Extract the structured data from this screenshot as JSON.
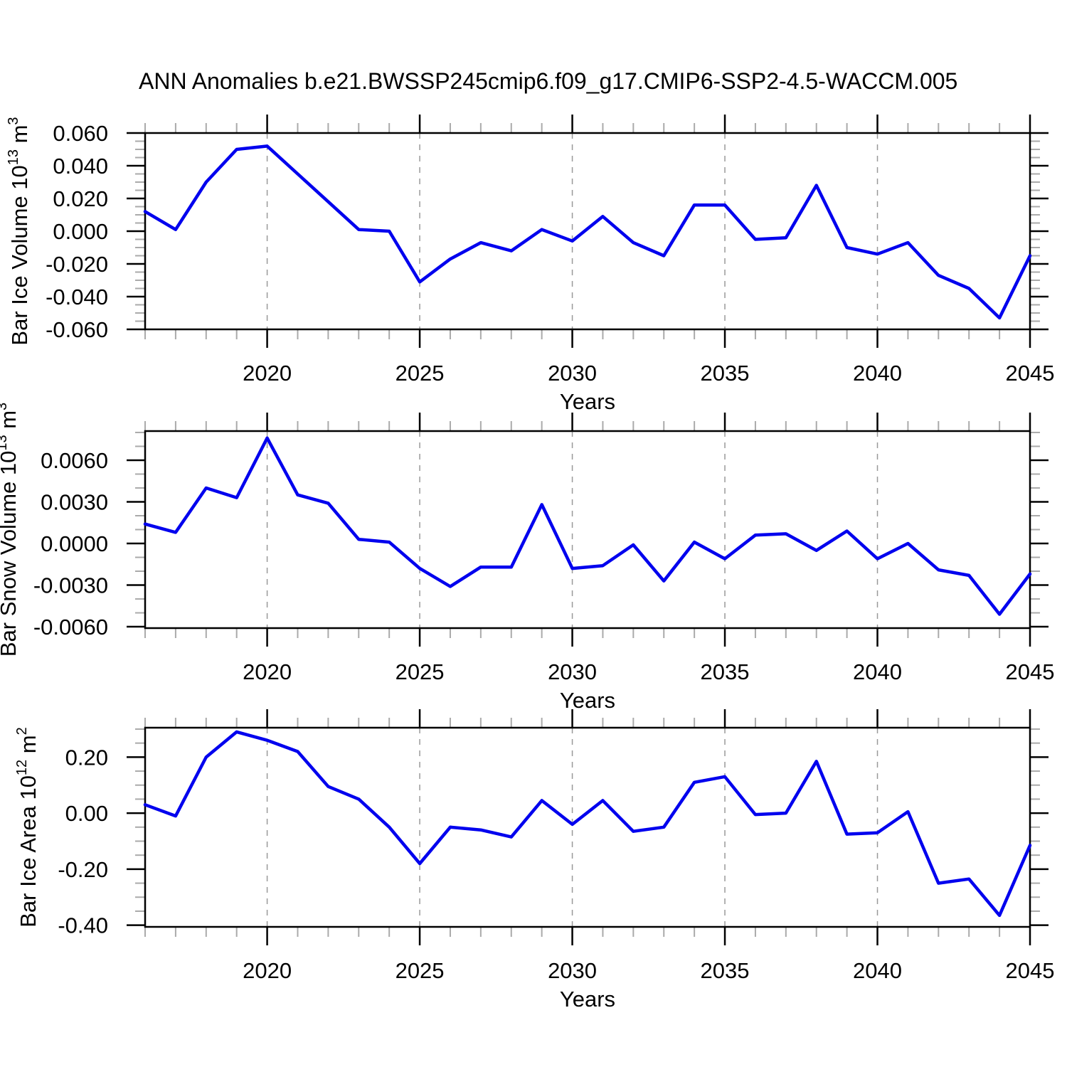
{
  "title": "ANN Anomalies b.e21.BWSSP245cmip6.f09_g17.CMIP6-SSP2-4.5-WACCM.005",
  "colors": {
    "line": "#0000ee",
    "axis": "#000000",
    "minor_tick": "#aaaaaa",
    "grid": "#999999",
    "background": "#ffffff"
  },
  "x_axis": {
    "label": "Years",
    "start": 2016,
    "end": 2045,
    "major_ticks": [
      2020,
      2025,
      2030,
      2035,
      2040,
      2045
    ],
    "major_tick_labels": [
      "2020",
      "2025",
      "2030",
      "2035",
      "2040",
      "2045"
    ],
    "minor_step": 1,
    "grid_years": [
      2020,
      2025,
      2030,
      2035,
      2040
    ]
  },
  "chart_data": [
    {
      "type": "line",
      "name": "bar-ice-volume",
      "ylabel": {
        "prefix": "Bar Ice Volume 10",
        "exp": "13",
        "unit": " m",
        "unit_exp": "3"
      },
      "xlabel": "Years",
      "ylim": [
        -0.06,
        0.06
      ],
      "minor_step": 0.005,
      "yticks": [
        {
          "v": 0.06,
          "label": "0.060"
        },
        {
          "v": 0.04,
          "label": "0.040"
        },
        {
          "v": 0.02,
          "label": "0.020"
        },
        {
          "v": 0.0,
          "label": "0.000"
        },
        {
          "v": -0.02,
          "label": "-0.020"
        },
        {
          "v": -0.04,
          "label": "-0.040"
        },
        {
          "v": -0.06,
          "label": "-0.060"
        }
      ],
      "x": [
        2016,
        2017,
        2018,
        2019,
        2020,
        2021,
        2022,
        2023,
        2024,
        2025,
        2026,
        2027,
        2028,
        2029,
        2030,
        2031,
        2032,
        2033,
        2034,
        2035,
        2036,
        2037,
        2038,
        2039,
        2040,
        2041,
        2042,
        2043,
        2044,
        2045
      ],
      "values": [
        0.012,
        0.001,
        0.03,
        0.05,
        0.052,
        0.035,
        0.018,
        0.001,
        0.0,
        -0.031,
        -0.017,
        -0.007,
        -0.012,
        0.001,
        -0.006,
        0.009,
        -0.007,
        -0.015,
        0.016,
        0.016,
        -0.005,
        -0.004,
        0.028,
        -0.01,
        -0.014,
        -0.007,
        -0.027,
        -0.035,
        -0.053,
        -0.015
      ]
    },
    {
      "type": "line",
      "name": "bar-snow-volume",
      "ylabel": {
        "prefix": "Bar Snow Volume 10",
        "exp": "13",
        "unit": " m",
        "unit_exp": "3"
      },
      "xlabel": "Years",
      "ylim": [
        -0.0061,
        0.0081
      ],
      "minor_step": 0.001,
      "yticks": [
        {
          "v": 0.006,
          "label": "0.0060"
        },
        {
          "v": 0.003,
          "label": "0.0030"
        },
        {
          "v": 0.0,
          "label": "0.0000"
        },
        {
          "v": -0.003,
          "label": "-0.0030"
        },
        {
          "v": -0.006,
          "label": "-0.0060"
        }
      ],
      "x": [
        2016,
        2017,
        2018,
        2019,
        2020,
        2021,
        2022,
        2023,
        2024,
        2025,
        2026,
        2027,
        2028,
        2029,
        2030,
        2031,
        2032,
        2033,
        2034,
        2035,
        2036,
        2037,
        2038,
        2039,
        2040,
        2041,
        2042,
        2043,
        2044,
        2045
      ],
      "values": [
        0.0014,
        0.0008,
        0.004,
        0.0033,
        0.0076,
        0.0035,
        0.0029,
        0.0003,
        0.0001,
        -0.0018,
        -0.0031,
        -0.0017,
        -0.0017,
        0.0028,
        -0.0018,
        -0.0016,
        -0.0001,
        -0.0027,
        0.0001,
        -0.0011,
        0.0006,
        0.0007,
        -0.0005,
        0.0009,
        -0.0011,
        0.0,
        -0.0019,
        -0.0023,
        -0.0051,
        -0.0022
      ]
    },
    {
      "type": "line",
      "name": "bar-ice-area",
      "ylabel": {
        "prefix": "Bar Ice Area 10",
        "exp": "12",
        "unit": " m",
        "unit_exp": "2"
      },
      "xlabel": "Years",
      "ylim": [
        -0.406,
        0.305
      ],
      "minor_step": 0.05,
      "yticks": [
        {
          "v": 0.2,
          "label": "0.20"
        },
        {
          "v": 0.0,
          "label": "0.00"
        },
        {
          "v": -0.2,
          "label": "-0.20"
        },
        {
          "v": -0.4,
          "label": "-0.40"
        }
      ],
      "x": [
        2016,
        2017,
        2018,
        2019,
        2020,
        2021,
        2022,
        2023,
        2024,
        2025,
        2026,
        2027,
        2028,
        2029,
        2030,
        2031,
        2032,
        2033,
        2034,
        2035,
        2036,
        2037,
        2038,
        2039,
        2040,
        2041,
        2042,
        2043,
        2044,
        2045
      ],
      "values": [
        0.03,
        -0.01,
        0.2,
        0.29,
        0.26,
        0.22,
        0.095,
        0.05,
        -0.05,
        -0.18,
        -0.05,
        -0.06,
        -0.085,
        0.045,
        -0.04,
        0.045,
        -0.065,
        -0.05,
        0.11,
        0.13,
        -0.005,
        0.0,
        0.185,
        -0.075,
        -0.07,
        0.005,
        -0.25,
        -0.235,
        -0.365,
        -0.115
      ]
    }
  ]
}
